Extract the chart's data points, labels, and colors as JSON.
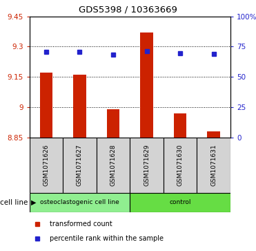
{
  "title": "GDS5398 / 10363669",
  "samples": [
    "GSM1071626",
    "GSM1071627",
    "GSM1071628",
    "GSM1071629",
    "GSM1071630",
    "GSM1071631"
  ],
  "bar_values": [
    9.17,
    9.16,
    8.99,
    9.37,
    8.97,
    8.88
  ],
  "percentile_values": [
    70.5,
    70.5,
    68.5,
    71.0,
    69.5,
    69.0
  ],
  "baseline": 8.85,
  "ylim_left": [
    8.85,
    9.45
  ],
  "ylim_right": [
    0,
    100
  ],
  "yticks_left": [
    8.85,
    9.0,
    9.15,
    9.3,
    9.45
  ],
  "yticks_right": [
    0,
    25,
    50,
    75,
    100
  ],
  "ytick_labels_left": [
    "8.85",
    "9",
    "9.15",
    "9.3",
    "9.45"
  ],
  "ytick_labels_right": [
    "0",
    "25",
    "50",
    "75",
    "100%"
  ],
  "bar_color": "#cc2200",
  "point_color": "#2222cc",
  "groups": [
    {
      "label": "osteoclastogenic cell line",
      "start": 0,
      "end": 3,
      "color": "#90ee90"
    },
    {
      "label": "control",
      "start": 3,
      "end": 6,
      "color": "#66dd44"
    }
  ],
  "cell_line_label": "cell line",
  "legend_items": [
    {
      "label": "transformed count",
      "color": "#cc2200"
    },
    {
      "label": "percentile rank within the sample",
      "color": "#2222cc"
    }
  ],
  "bg_color": "#ffffff",
  "sample_box_color": "#d3d3d3",
  "fig_width": 3.71,
  "fig_height": 3.63,
  "dpi": 100
}
